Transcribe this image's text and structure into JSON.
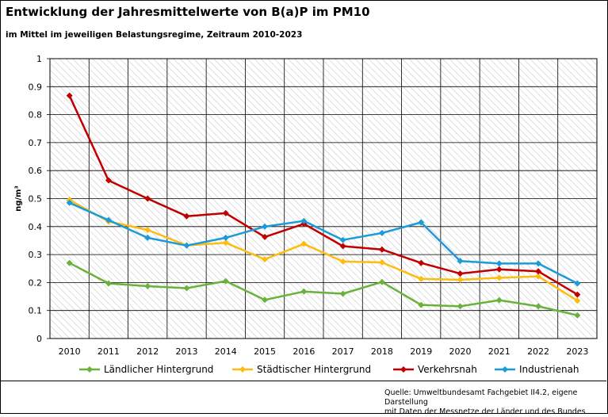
{
  "title": "Entwicklung der Jahresmittelwerte von B(a)P im PM10",
  "subtitle": "im Mittel im jeweiligen Belastungsregime, Zeitraum 2010-2023",
  "source": {
    "line1": "Quelle: Umweltbundesamt Fachgebiet II4.2, eigene Darstellung",
    "line2": "mit Daten der Messnetze der Länder und des Bundes"
  },
  "chart_data": {
    "type": "line",
    "title": "Entwicklung der Jahresmittelwerte von B(a)P im PM10",
    "xlabel": "",
    "ylabel": "ng/m³",
    "ylim": [
      0,
      1
    ],
    "grid": true,
    "legend": "bottom",
    "x": [
      "2010",
      "2011",
      "2012",
      "2013",
      "2014",
      "2015",
      "2016",
      "2017",
      "2018",
      "2019",
      "2020",
      "2021",
      "2022",
      "2023"
    ],
    "yticks": [
      "0",
      "0.1",
      "0.2",
      "0.3",
      "0.4",
      "0.5",
      "0.6",
      "0.7",
      "0.8",
      "0.9",
      "1"
    ],
    "series": [
      {
        "name": "Ländlicher Hintergrund",
        "color": "#6ab23b",
        "values": [
          0.27,
          0.197,
          0.187,
          0.18,
          0.205,
          0.138,
          0.168,
          0.16,
          0.202,
          0.12,
          0.115,
          0.137,
          0.115,
          0.083
        ]
      },
      {
        "name": "Städtischer Hintergrund",
        "color": "#fdbd10",
        "values": [
          0.495,
          0.418,
          0.388,
          0.333,
          0.342,
          0.283,
          0.338,
          0.275,
          0.272,
          0.213,
          0.21,
          0.217,
          0.222,
          0.135
        ]
      },
      {
        "name": "Verkehrsnah",
        "color": "#c00000",
        "values": [
          0.868,
          0.565,
          0.5,
          0.437,
          0.448,
          0.363,
          0.41,
          0.33,
          0.318,
          0.27,
          0.232,
          0.247,
          0.24,
          0.157
        ]
      },
      {
        "name": "Industrienah",
        "color": "#1b9bd7",
        "values": [
          0.485,
          0.423,
          0.36,
          0.332,
          0.36,
          0.4,
          0.42,
          0.352,
          0.377,
          0.415,
          0.277,
          0.268,
          0.268,
          0.197
        ]
      }
    ]
  }
}
